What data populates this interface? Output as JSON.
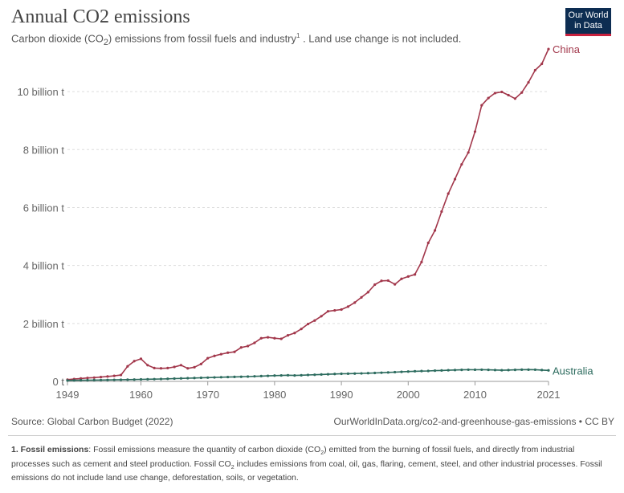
{
  "header": {
    "title_main": "Annual CO",
    "title_sub": "2",
    "title_tail": " emissions",
    "subtitle_a": "Carbon dioxide (CO",
    "subtitle_sub": "2",
    "subtitle_b": ") emissions from fossil fuels and industry",
    "subtitle_sup": "1",
    "subtitle_c": " . Land use change is not included."
  },
  "logo": {
    "line1": "Our World",
    "line2": "in Data"
  },
  "chart_data": {
    "type": "line",
    "title": "Annual CO₂ emissions",
    "xlim": [
      1949,
      2021
    ],
    "ylim": [
      0,
      11500000000
    ],
    "grid": true,
    "x_ticks": [
      1949,
      1960,
      1970,
      1980,
      1990,
      2000,
      2010,
      2021
    ],
    "x_tick_labels": [
      "1949",
      "1960",
      "1970",
      "1980",
      "1990",
      "2000",
      "2010",
      "2021"
    ],
    "y_ticks": [
      0,
      2000000000,
      4000000000,
      6000000000,
      8000000000,
      10000000000
    ],
    "y_tick_labels": [
      "0 t",
      "2 billion t",
      "4 billion t",
      "6 billion t",
      "8 billion t",
      "10 billion t"
    ],
    "legend": "inline-end-labels",
    "x": [
      1949,
      1950,
      1951,
      1952,
      1953,
      1954,
      1955,
      1956,
      1957,
      1958,
      1959,
      1960,
      1961,
      1962,
      1963,
      1964,
      1965,
      1966,
      1967,
      1968,
      1969,
      1970,
      1971,
      1972,
      1973,
      1974,
      1975,
      1976,
      1977,
      1978,
      1979,
      1980,
      1981,
      1982,
      1983,
      1984,
      1985,
      1986,
      1987,
      1988,
      1989,
      1990,
      1991,
      1992,
      1993,
      1994,
      1995,
      1996,
      1997,
      1998,
      1999,
      2000,
      2001,
      2002,
      2003,
      2004,
      2005,
      2006,
      2007,
      2008,
      2009,
      2010,
      2011,
      2012,
      2013,
      2014,
      2015,
      2016,
      2017,
      2018,
      2019,
      2020,
      2021
    ],
    "series": [
      {
        "name": "China",
        "color": "#a2374b",
        "values": [
          60000000,
          80000000,
          100000000,
          120000000,
          130000000,
          150000000,
          170000000,
          190000000,
          220000000,
          520000000,
          700000000,
          780000000,
          560000000,
          460000000,
          450000000,
          460000000,
          500000000,
          560000000,
          450000000,
          490000000,
          600000000,
          800000000,
          880000000,
          940000000,
          990000000,
          1020000000,
          1170000000,
          1220000000,
          1330000000,
          1490000000,
          1520000000,
          1490000000,
          1470000000,
          1590000000,
          1670000000,
          1810000000,
          1980000000,
          2100000000,
          2250000000,
          2420000000,
          2450000000,
          2480000000,
          2580000000,
          2720000000,
          2900000000,
          3080000000,
          3340000000,
          3470000000,
          3480000000,
          3350000000,
          3540000000,
          3620000000,
          3690000000,
          4120000000,
          4780000000,
          5210000000,
          5860000000,
          6480000000,
          6980000000,
          7490000000,
          7900000000,
          8620000000,
          9530000000,
          9780000000,
          9950000000,
          9990000000,
          9880000000,
          9760000000,
          9970000000,
          10320000000,
          10740000000,
          10960000000,
          11470000000
        ]
      },
      {
        "name": "Australia",
        "color": "#2c6b5e",
        "values": [
          32000000,
          35000000,
          38000000,
          41000000,
          44000000,
          47000000,
          50000000,
          54000000,
          57000000,
          60000000,
          64000000,
          70000000,
          74000000,
          78000000,
          84000000,
          90000000,
          97000000,
          103000000,
          110000000,
          117000000,
          124000000,
          130000000,
          137000000,
          144000000,
          150000000,
          155000000,
          160000000,
          167000000,
          175000000,
          183000000,
          190000000,
          200000000,
          206000000,
          212000000,
          205000000,
          212000000,
          221000000,
          229000000,
          238000000,
          246000000,
          256000000,
          264000000,
          266000000,
          271000000,
          276000000,
          283000000,
          292000000,
          300000000,
          310000000,
          320000000,
          330000000,
          340000000,
          349000000,
          356000000,
          361000000,
          370000000,
          378000000,
          386000000,
          393000000,
          399000000,
          404000000,
          403000000,
          404000000,
          400000000,
          393000000,
          386000000,
          391000000,
          399000000,
          405000000,
          406000000,
          404000000,
          392000000,
          380000000
        ]
      }
    ]
  },
  "footer": {
    "source": "Source: Global Carbon Budget (2022)",
    "url": "OurWorldInData.org/co2-and-greenhouse-gas-emissions • CC BY",
    "footnote_head": "1. Fossil emissions",
    "footnote_a": ": Fossil emissions measure the quantity of carbon dioxide (CO",
    "footnote_sub1": "2",
    "footnote_b": ") emitted from the burning of fossil fuels, and directly from industrial processes such as cement and steel production. Fossil CO",
    "footnote_sub2": "2",
    "footnote_c": " includes emissions from coal, oil, gas, flaring, cement, steel, and other industrial processes. Fossil emissions do not include land use change, deforestation, soils, or vegetation."
  }
}
